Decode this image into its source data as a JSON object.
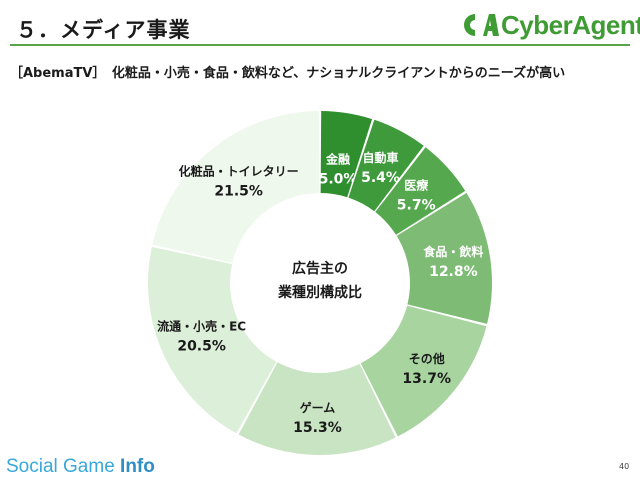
{
  "header": {
    "title": "５．メディア事業",
    "logo_text": "CyberAgent",
    "subtitle": "［AbemaTV］　化粧品・小売・食品・飲料など、ナショナルクライアントからのニーズが高い"
  },
  "footer": {
    "brand_part1": "Social Game ",
    "brand_part2": "Info",
    "page_number": "40"
  },
  "colors": {
    "accent": "#3f9b33",
    "slice_colors": [
      "#2f8f2f",
      "#3f9a3c",
      "#55a84e",
      "#7ebc75",
      "#a8d4a0",
      "#c8e4c2",
      "#dcefd8",
      "#eef8ec"
    ]
  },
  "chart_data": {
    "type": "pie",
    "donut": true,
    "center_label": [
      "広告主の",
      "業種別構成比"
    ],
    "slices": [
      {
        "label": "金融",
        "value": 5.0,
        "value_label": "5.0%"
      },
      {
        "label": "自動車",
        "value": 5.4,
        "value_label": "5.4%"
      },
      {
        "label": "医療",
        "value": 5.7,
        "value_label": "5.7%"
      },
      {
        "label": "食品・飲料",
        "value": 12.8,
        "value_label": "12.8%"
      },
      {
        "label": "その他",
        "value": 13.7,
        "value_label": "13.7%"
      },
      {
        "label": "ゲーム",
        "value": 15.3,
        "value_label": "15.3%"
      },
      {
        "label": "流通・小売・EC",
        "value": 20.5,
        "value_label": "20.5%"
      },
      {
        "label": "化粧品・トイレタリー",
        "value": 21.5,
        "value_label": "21.5%"
      }
    ]
  }
}
